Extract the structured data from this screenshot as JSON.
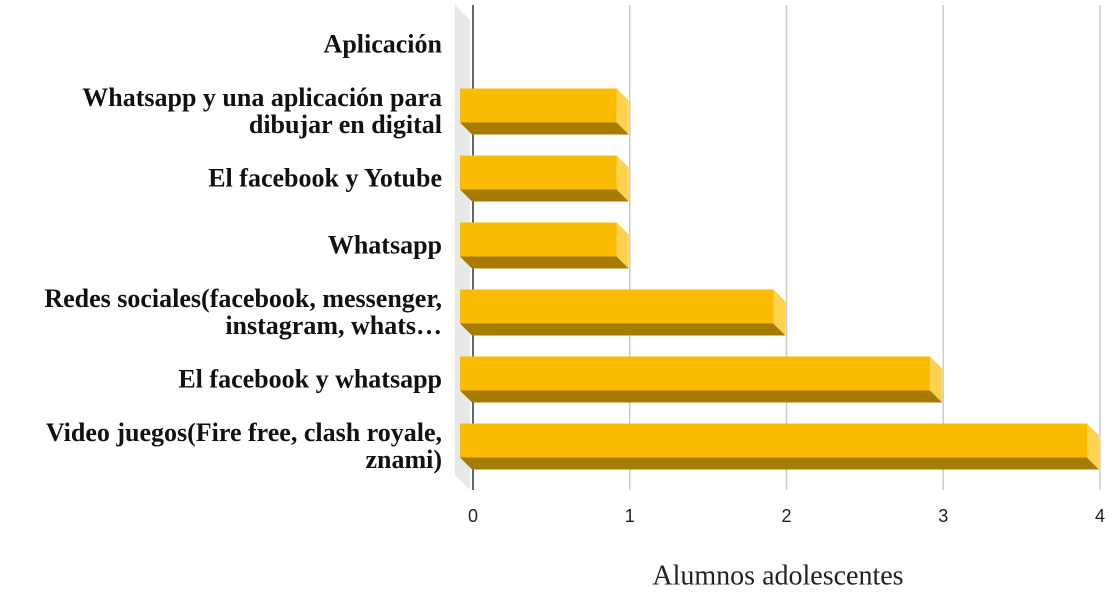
{
  "chart_data": {
    "type": "bar",
    "orientation": "horizontal",
    "x_label": "Alumnos adolescentes",
    "categories": [
      "Aplicación",
      "Whatsapp y una aplicación para dibujar en digital",
      "El facebook y Yotube",
      "Whatsapp",
      "Redes sociales(facebook, messenger, instagram, whats…",
      "El facebook y whatsapp",
      "Video juegos(Fire free, clash royale, znami)"
    ],
    "values": [
      null,
      1,
      1,
      1,
      2,
      3,
      4
    ],
    "color": "#f9bc02",
    "xlim": [
      0,
      4
    ],
    "xticks": [
      0,
      1,
      2,
      3,
      4
    ],
    "grid": true
  }
}
